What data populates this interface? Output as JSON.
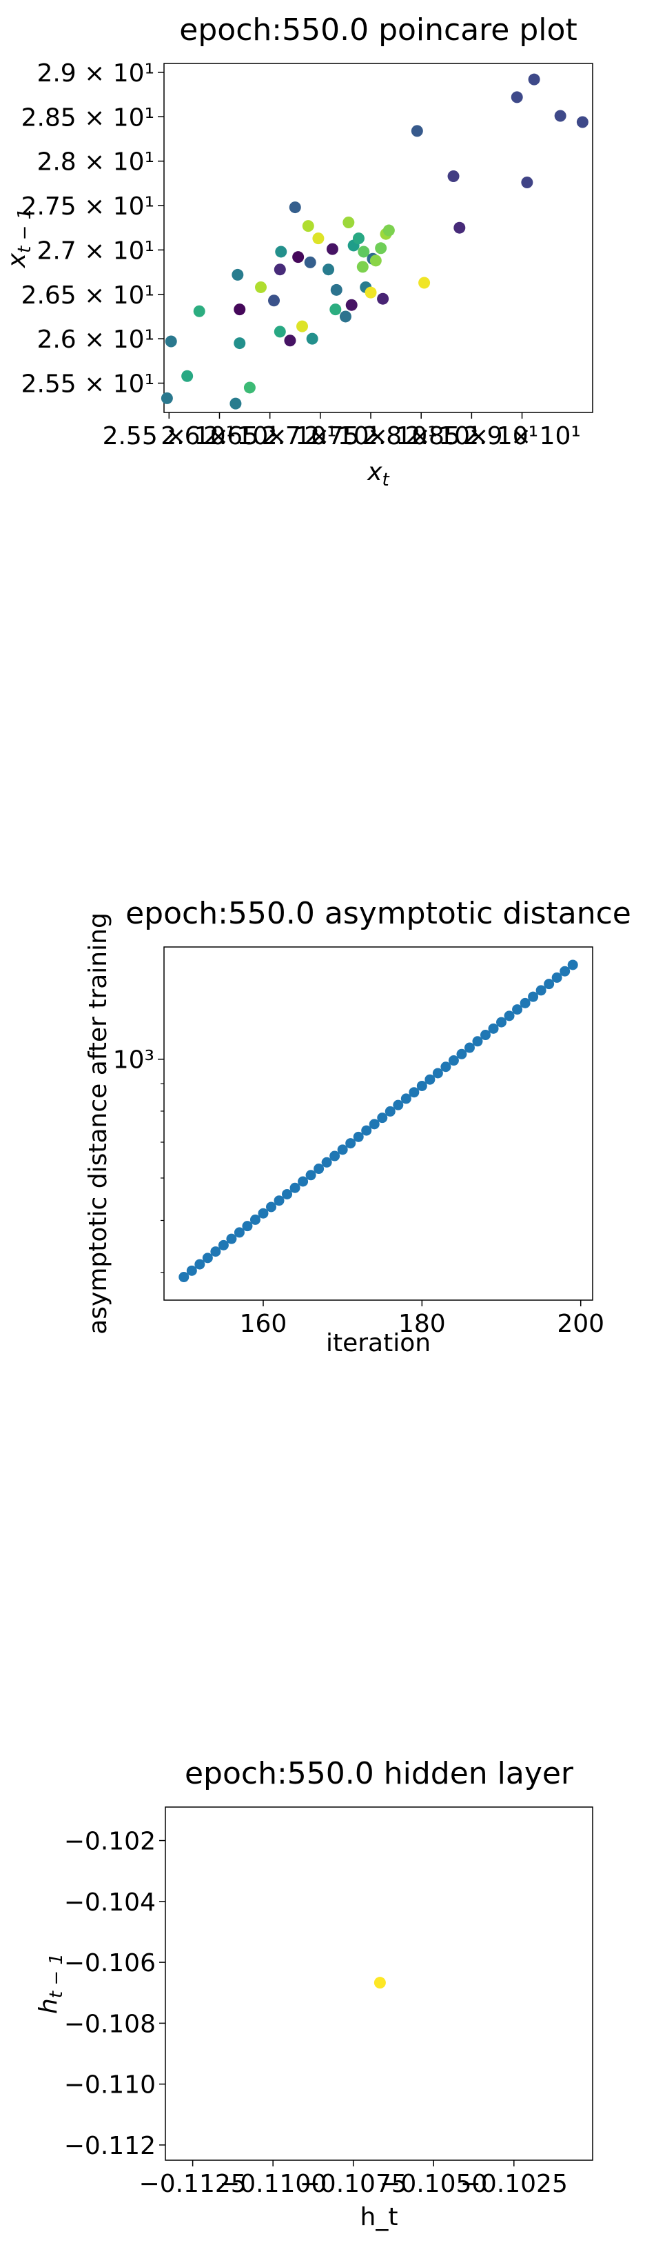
{
  "chart_data": [
    {
      "type": "scatter",
      "title": "epoch:550.0 poincare plot",
      "xlabel": "x_t",
      "ylabel": "x_{t-1}",
      "xlim": [
        25.45,
        29.7
      ],
      "ylim": [
        25.17,
        29.1
      ],
      "x_ticks": [
        25.5,
        26.0,
        26.5,
        27.0,
        27.5,
        28.0,
        28.5,
        29.0
      ],
      "x_tick_labels": [
        "2.55 × 10¹",
        "2.6 × 10¹",
        "2.65 × 10¹",
        "2.7 × 10¹",
        "2.75 × 10¹",
        "2.8 × 10¹",
        "2.85 × 10¹",
        "2.9 × 10¹"
      ],
      "y_ticks": [
        25.5,
        26.0,
        26.5,
        27.0,
        27.5,
        28.0,
        28.5,
        29.0
      ],
      "y_tick_labels": [
        "2.55 × 10¹",
        "2.6 × 10¹",
        "2.65 × 10¹",
        "2.7 × 10¹",
        "2.75 × 10¹",
        "2.8 × 10¹",
        "2.85 × 10¹",
        "2.9 × 10¹"
      ],
      "colormap": "viridis",
      "points": [
        {
          "x": 25.48,
          "y": 25.33,
          "c": 0.4
        },
        {
          "x": 25.52,
          "y": 25.97,
          "c": 0.4
        },
        {
          "x": 25.68,
          "y": 25.58,
          "c": 0.6
        },
        {
          "x": 25.8,
          "y": 26.31,
          "c": 0.62
        },
        {
          "x": 26.16,
          "y": 25.27,
          "c": 0.42
        },
        {
          "x": 26.2,
          "y": 25.95,
          "c": 0.5
        },
        {
          "x": 26.18,
          "y": 26.72,
          "c": 0.42
        },
        {
          "x": 26.2,
          "y": 26.33,
          "c": 0.02
        },
        {
          "x": 26.3,
          "y": 25.45,
          "c": 0.68
        },
        {
          "x": 26.41,
          "y": 26.58,
          "c": 0.88
        },
        {
          "x": 26.54,
          "y": 26.43,
          "c": 0.25
        },
        {
          "x": 26.6,
          "y": 26.08,
          "c": 0.6
        },
        {
          "x": 26.6,
          "y": 26.78,
          "c": 0.12
        },
        {
          "x": 26.61,
          "y": 26.98,
          "c": 0.5
        },
        {
          "x": 26.7,
          "y": 25.98,
          "c": 0.05
        },
        {
          "x": 26.75,
          "y": 27.48,
          "c": 0.3
        },
        {
          "x": 26.78,
          "y": 26.92,
          "c": 0.02
        },
        {
          "x": 26.82,
          "y": 26.14,
          "c": 0.95
        },
        {
          "x": 26.88,
          "y": 27.27,
          "c": 0.88
        },
        {
          "x": 26.9,
          "y": 26.86,
          "c": 0.3
        },
        {
          "x": 26.92,
          "y": 26.0,
          "c": 0.5
        },
        {
          "x": 26.98,
          "y": 27.13,
          "c": 0.95
        },
        {
          "x": 27.08,
          "y": 26.78,
          "c": 0.42
        },
        {
          "x": 27.12,
          "y": 27.01,
          "c": 0.05
        },
        {
          "x": 27.15,
          "y": 26.33,
          "c": 0.62
        },
        {
          "x": 27.16,
          "y": 26.55,
          "c": 0.38
        },
        {
          "x": 27.25,
          "y": 26.25,
          "c": 0.38
        },
        {
          "x": 27.28,
          "y": 27.31,
          "c": 0.85
        },
        {
          "x": 27.31,
          "y": 26.38,
          "c": 0.05
        },
        {
          "x": 27.33,
          "y": 27.05,
          "c": 0.55
        },
        {
          "x": 27.38,
          "y": 27.13,
          "c": 0.6
        },
        {
          "x": 27.42,
          "y": 26.81,
          "c": 0.8
        },
        {
          "x": 27.43,
          "y": 26.98,
          "c": 0.75
        },
        {
          "x": 27.45,
          "y": 26.58,
          "c": 0.42
        },
        {
          "x": 27.5,
          "y": 26.52,
          "c": 0.98
        },
        {
          "x": 27.52,
          "y": 26.9,
          "c": 0.35
        },
        {
          "x": 27.55,
          "y": 26.88,
          "c": 0.82
        },
        {
          "x": 27.6,
          "y": 27.02,
          "c": 0.78
        },
        {
          "x": 27.62,
          "y": 26.45,
          "c": 0.1
        },
        {
          "x": 27.65,
          "y": 27.18,
          "c": 0.85
        },
        {
          "x": 27.68,
          "y": 27.22,
          "c": 0.8
        },
        {
          "x": 27.96,
          "y": 28.34,
          "c": 0.28
        },
        {
          "x": 28.03,
          "y": 26.63,
          "c": 0.98
        },
        {
          "x": 28.32,
          "y": 27.83,
          "c": 0.18
        },
        {
          "x": 28.38,
          "y": 27.25,
          "c": 0.12
        },
        {
          "x": 28.95,
          "y": 28.72,
          "c": 0.22
        },
        {
          "x": 29.05,
          "y": 27.76,
          "c": 0.2
        },
        {
          "x": 29.12,
          "y": 28.92,
          "c": 0.22
        },
        {
          "x": 29.38,
          "y": 28.51,
          "c": 0.22
        },
        {
          "x": 29.6,
          "y": 28.44,
          "c": 0.22
        }
      ]
    },
    {
      "type": "scatter",
      "title": "epoch:550.0 asymptotic distance",
      "xlabel": "iteration",
      "ylabel": "asymptotic distance after training",
      "xlim": [
        147.5,
        201.5
      ],
      "ylim": [
        355,
        1620
      ],
      "yscale": "log",
      "x_ticks": [
        160,
        180,
        200
      ],
      "x_tick_labels": [
        "160",
        "180",
        "200"
      ],
      "y_major_tick": 1000,
      "y_major_tick_label": "10³",
      "y_minor_ticks": [
        400,
        500,
        600,
        700,
        800,
        900
      ],
      "marker_color": "#1f77b4",
      "x": [
        150,
        199
      ],
      "y_start": 392,
      "y_end": 1500
    },
    {
      "type": "scatter",
      "title": "epoch:550.0 hidden layer",
      "xlabel": "h_t",
      "ylabel": "h_{t-1}",
      "xlim": [
        -0.11335,
        -0.10005
      ],
      "ylim": [
        -0.1125,
        -0.1009
      ],
      "x_ticks": [
        -0.1125,
        -0.11,
        -0.1075,
        -0.105,
        -0.1025
      ],
      "x_tick_labels": [
        "−0.1125",
        "−0.1100",
        "−0.1075",
        "−0.1050",
        "−0.1025"
      ],
      "y_ticks": [
        -0.102,
        -0.104,
        -0.106,
        -0.108,
        -0.11,
        -0.112
      ],
      "y_tick_labels": [
        "−0.102",
        "−0.104",
        "−0.106",
        "−0.108",
        "−0.110",
        "−0.112"
      ],
      "points": [
        {
          "x": -0.10667,
          "y": -0.10667,
          "c": 1.0
        }
      ]
    }
  ]
}
